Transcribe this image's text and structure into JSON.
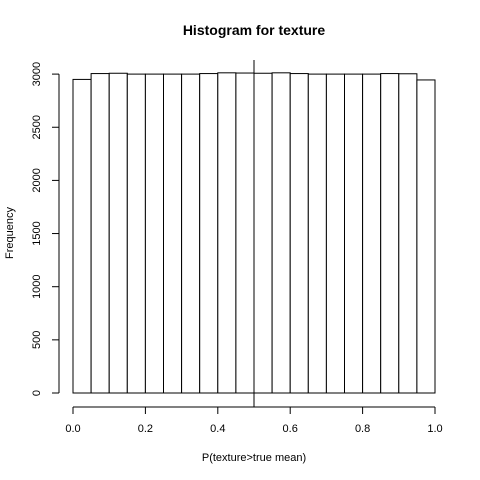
{
  "chart_data": {
    "type": "bar",
    "title": "Histogram for texture",
    "xlabel": "P(texture>true mean)",
    "ylabel": "Frequency",
    "bins": [
      {
        "x0": 0.0,
        "x1": 0.05,
        "count": 2950
      },
      {
        "x0": 0.05,
        "x1": 0.1,
        "count": 3005
      },
      {
        "x0": 0.1,
        "x1": 0.15,
        "count": 3008
      },
      {
        "x0": 0.15,
        "x1": 0.2,
        "count": 3000
      },
      {
        "x0": 0.2,
        "x1": 0.25,
        "count": 3000
      },
      {
        "x0": 0.25,
        "x1": 0.3,
        "count": 3000
      },
      {
        "x0": 0.3,
        "x1": 0.35,
        "count": 3000
      },
      {
        "x0": 0.35,
        "x1": 0.4,
        "count": 3005
      },
      {
        "x0": 0.4,
        "x1": 0.45,
        "count": 3012
      },
      {
        "x0": 0.45,
        "x1": 0.5,
        "count": 3010
      },
      {
        "x0": 0.5,
        "x1": 0.55,
        "count": 3008
      },
      {
        "x0": 0.55,
        "x1": 0.6,
        "count": 3012
      },
      {
        "x0": 0.6,
        "x1": 0.65,
        "count": 3005
      },
      {
        "x0": 0.65,
        "x1": 0.7,
        "count": 3000
      },
      {
        "x0": 0.7,
        "x1": 0.75,
        "count": 3000
      },
      {
        "x0": 0.75,
        "x1": 0.8,
        "count": 3000
      },
      {
        "x0": 0.8,
        "x1": 0.85,
        "count": 3000
      },
      {
        "x0": 0.85,
        "x1": 0.9,
        "count": 3005
      },
      {
        "x0": 0.9,
        "x1": 0.95,
        "count": 3003
      },
      {
        "x0": 0.95,
        "x1": 1.0,
        "count": 2945
      }
    ],
    "xlim": [
      0,
      1
    ],
    "ylim": [
      0,
      3050
    ],
    "xticks": [
      {
        "value": 0.0,
        "label": "0.0"
      },
      {
        "value": 0.2,
        "label": "0.2"
      },
      {
        "value": 0.4,
        "label": "0.4"
      },
      {
        "value": 0.6,
        "label": "0.6"
      },
      {
        "value": 0.8,
        "label": "0.8"
      },
      {
        "value": 1.0,
        "label": "1.0"
      }
    ],
    "yticks": [
      {
        "value": 0,
        "label": "0"
      },
      {
        "value": 500,
        "label": "500"
      },
      {
        "value": 1000,
        "label": "1000"
      },
      {
        "value": 1500,
        "label": "1500"
      },
      {
        "value": 2000,
        "label": "2000"
      },
      {
        "value": 2500,
        "label": "2500"
      },
      {
        "value": 3000,
        "label": "3000"
      }
    ],
    "reference_line_x": 0.5,
    "grid": false,
    "legend": "none"
  }
}
